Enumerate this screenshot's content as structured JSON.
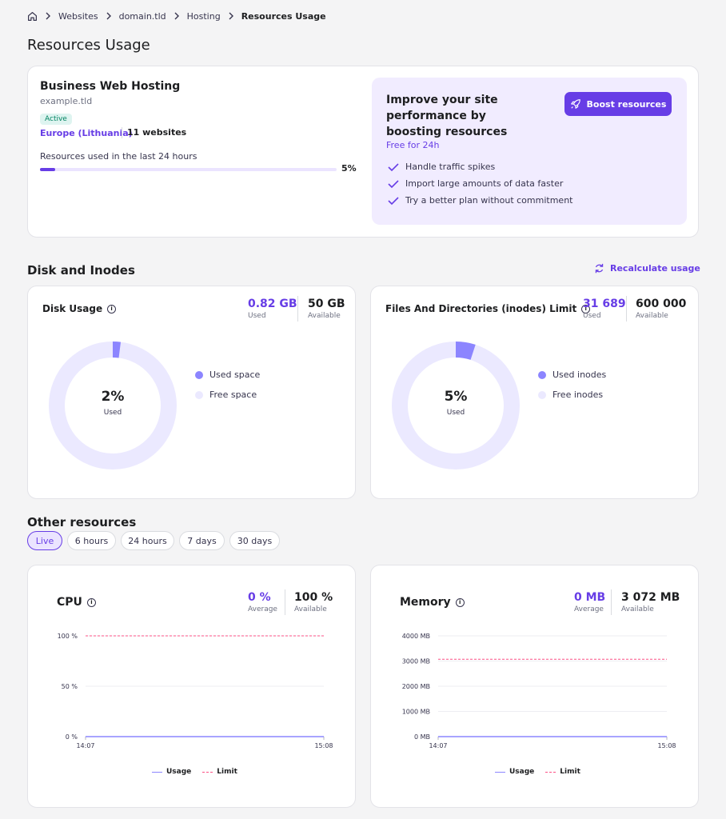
{
  "breadcrumb": {
    "items": [
      "Websites",
      "domain.tld",
      "Hosting"
    ],
    "current": "Resources Usage"
  },
  "page_title": "Resources Usage",
  "plan": {
    "name": "Business Web Hosting",
    "domain": "example.tld",
    "status": "Active",
    "location": "Europe (Lithuania)",
    "websites": "11 websites",
    "usage_label": "Resources used in the last 24 hours",
    "usage_percent_text": "5%",
    "usage_percent": 5
  },
  "boost": {
    "title": "Improve your site performance by boosting resources",
    "subtitle": "Free for 24h",
    "button": "Boost resources",
    "benefits": [
      "Handle traffic spikes",
      "Import large amounts of data faster",
      "Try a better plan without commitment"
    ]
  },
  "disk_section": {
    "title": "Disk and Inodes",
    "recalculate": "Recalculate usage"
  },
  "disk": {
    "title": "Disk Usage",
    "used_value": "0.82 GB",
    "used_label": "Used",
    "avail_value": "50 GB",
    "avail_label": "Available",
    "percent_text": "2%",
    "percent_label": "Used",
    "percent": 2,
    "legend_used": "Used space",
    "legend_free": "Free space"
  },
  "inodes": {
    "title": "Files And Directories (inodes) Limit",
    "used_value": "31 689",
    "used_label": "Used",
    "avail_value": "600 000",
    "avail_label": "Available",
    "percent_text": "5%",
    "percent_label": "Used",
    "percent": 5,
    "legend_used": "Used inodes",
    "legend_free": "Free inodes"
  },
  "other": {
    "title": "Other resources",
    "ranges": [
      "Live",
      "6 hours",
      "24 hours",
      "7 days",
      "30 days"
    ],
    "active_range": "Live"
  },
  "cpu": {
    "title": "CPU",
    "avg_value": "0 %",
    "avg_label": "Average",
    "avail_value": "100 %",
    "avail_label": "Available",
    "y_ticks": [
      "100 %",
      "50 %",
      "0 %"
    ],
    "x_ticks": [
      "14:07",
      "15:08"
    ],
    "legend_usage": "Usage",
    "legend_limit": "Limit"
  },
  "memory": {
    "title": "Memory",
    "avg_value": "0 MB",
    "avg_label": "Average",
    "avail_value": "3 072 MB",
    "avail_label": "Available",
    "y_ticks": [
      "4000 MB",
      "3000 MB",
      "2000 MB",
      "1000 MB",
      "0 MB"
    ],
    "x_ticks": [
      "14:07",
      "15:08"
    ],
    "legend_usage": "Usage",
    "legend_limit": "Limit"
  },
  "chart_data": [
    {
      "type": "line",
      "x": [
        "14:07",
        "15:08"
      ],
      "ylim": [
        0,
        100
      ],
      "series": [
        {
          "name": "Usage",
          "values": [
            0,
            0
          ]
        },
        {
          "name": "Limit",
          "values": [
            100,
            100
          ]
        }
      ]
    },
    {
      "type": "line",
      "x": [
        "14:07",
        "15:08"
      ],
      "ylim": [
        0,
        4000
      ],
      "series": [
        {
          "name": "Usage",
          "values": [
            0,
            0
          ]
        },
        {
          "name": "Limit",
          "values": [
            3072,
            3072
          ]
        }
      ]
    }
  ],
  "colors": {
    "accent": "#673de6",
    "accent_light": "#ebe4ff",
    "limit": "#fc5185",
    "active_badge": "#008361"
  }
}
